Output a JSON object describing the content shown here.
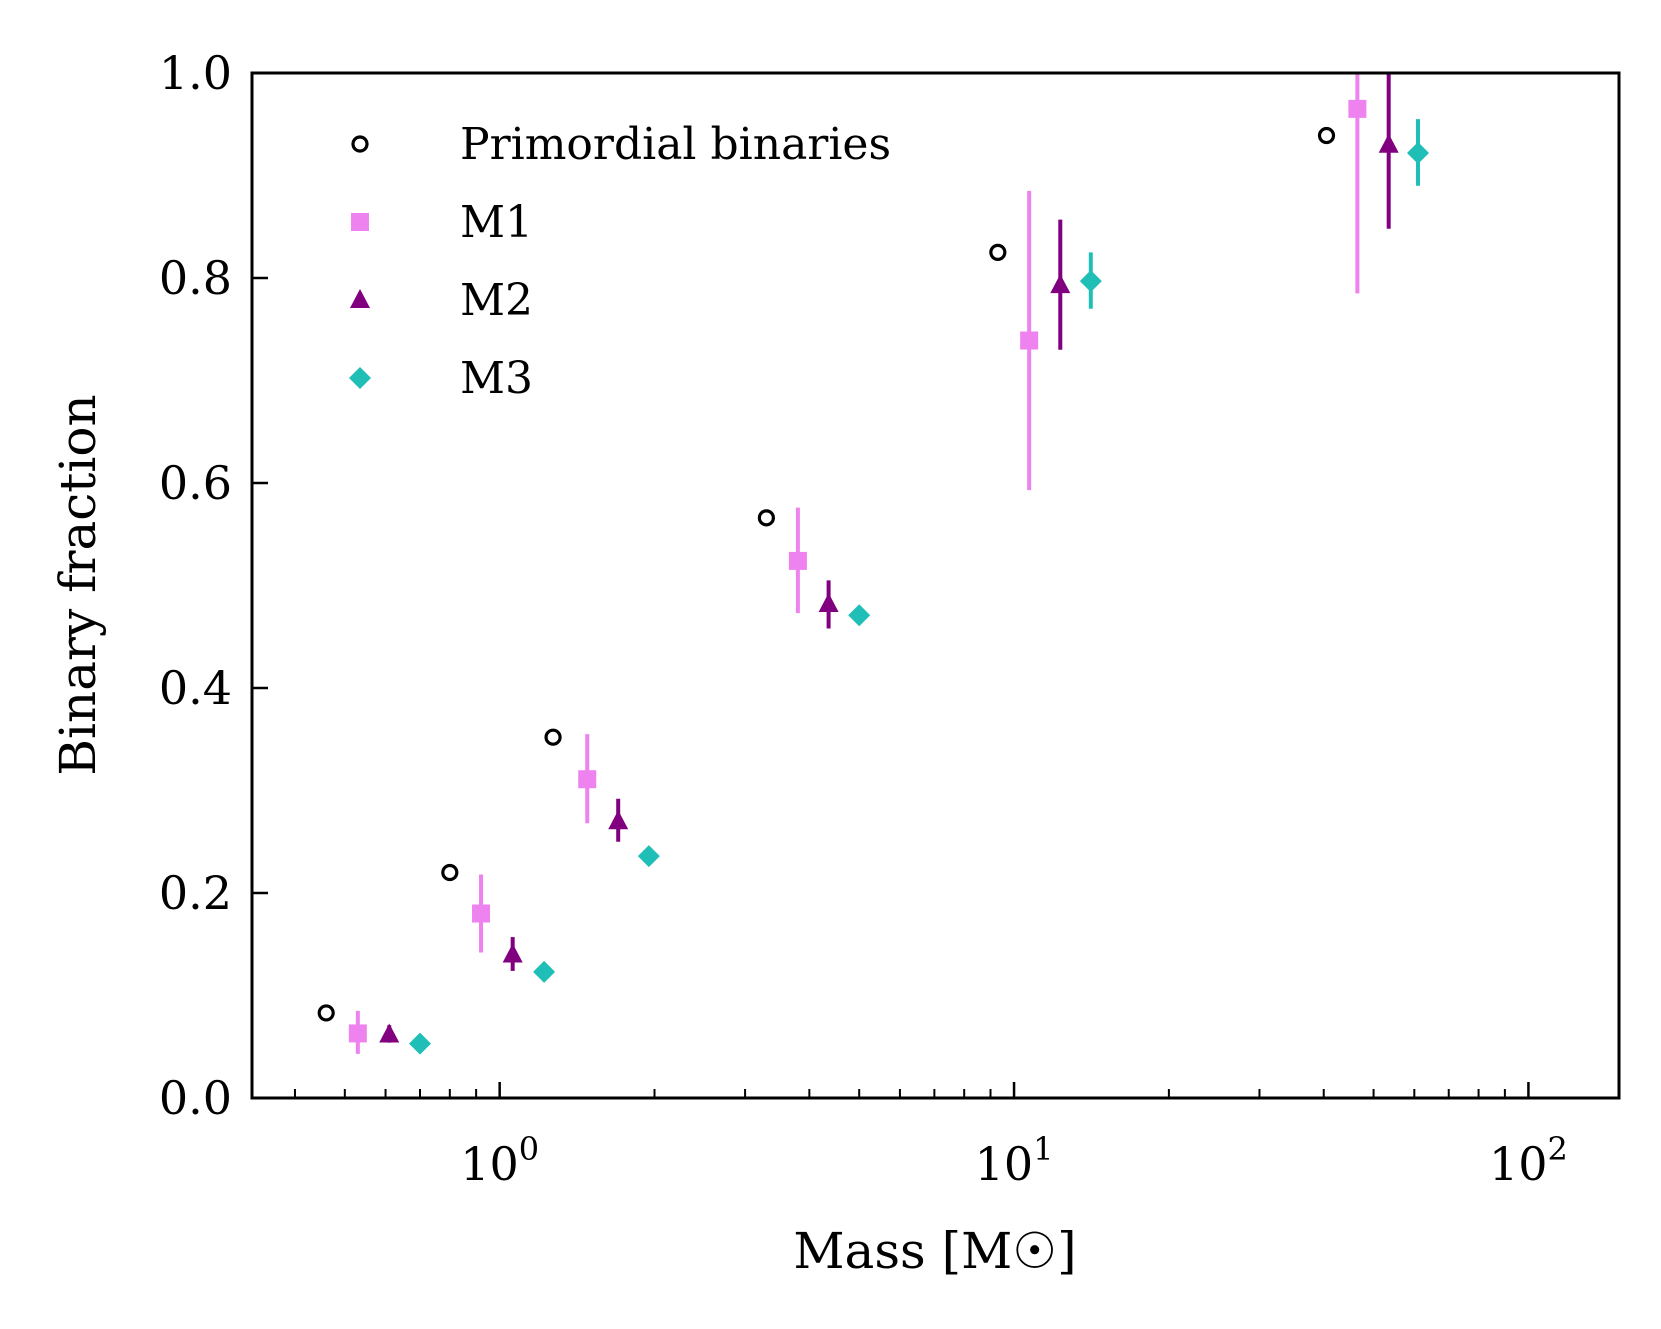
{
  "chart_data": {
    "type": "scatter",
    "title": "",
    "xlabel": "Mass [M☉]",
    "ylabel": "Binary fraction",
    "xscale": "log",
    "xlim": [
      0.33,
      150
    ],
    "ylim": [
      0.0,
      1.0
    ],
    "x_ticks": [
      {
        "value": 1,
        "base": "10",
        "exp": "0"
      },
      {
        "value": 10,
        "base": "10",
        "exp": "1"
      },
      {
        "value": 100,
        "base": "10",
        "exp": "2"
      }
    ],
    "y_ticks": [
      "0.0",
      "0.2",
      "0.4",
      "0.6",
      "0.8",
      "1.0"
    ],
    "grid": false,
    "legend_position": "top-left",
    "series": [
      {
        "name": "Primordial binaries",
        "marker": "open-circle",
        "color": "#000000",
        "points": [
          {
            "x": 0.46,
            "y": 0.083
          },
          {
            "x": 0.8,
            "y": 0.22
          },
          {
            "x": 1.27,
            "y": 0.352
          },
          {
            "x": 3.3,
            "y": 0.566
          },
          {
            "x": 9.3,
            "y": 0.825
          },
          {
            "x": 40.5,
            "y": 0.939
          }
        ]
      },
      {
        "name": "M1",
        "marker": "square",
        "color": "#ee82ee",
        "points": [
          {
            "x": 0.53,
            "y": 0.063,
            "ylow": 0.043,
            "yhigh": 0.085
          },
          {
            "x": 0.92,
            "y": 0.18,
            "ylow": 0.142,
            "yhigh": 0.218
          },
          {
            "x": 1.48,
            "y": 0.311,
            "ylow": 0.268,
            "yhigh": 0.355
          },
          {
            "x": 3.8,
            "y": 0.524,
            "ylow": 0.473,
            "yhigh": 0.576
          },
          {
            "x": 10.7,
            "y": 0.739,
            "ylow": 0.593,
            "yhigh": 0.885
          },
          {
            "x": 46.5,
            "y": 0.965,
            "ylow": 0.785,
            "yhigh": 1.0
          }
        ]
      },
      {
        "name": "M2",
        "marker": "triangle-up",
        "color": "#800080",
        "points": [
          {
            "x": 0.61,
            "y": 0.062,
            "ylow": 0.054,
            "yhigh": 0.071
          },
          {
            "x": 1.06,
            "y": 0.14,
            "ylow": 0.124,
            "yhigh": 0.157
          },
          {
            "x": 1.7,
            "y": 0.27,
            "ylow": 0.25,
            "yhigh": 0.292
          },
          {
            "x": 4.36,
            "y": 0.482,
            "ylow": 0.458,
            "yhigh": 0.505
          },
          {
            "x": 12.3,
            "y": 0.793,
            "ylow": 0.73,
            "yhigh": 0.857
          },
          {
            "x": 53.5,
            "y": 0.93,
            "ylow": 0.848,
            "yhigh": 1.0
          }
        ]
      },
      {
        "name": "M3",
        "marker": "diamond",
        "color": "#1fbfb8",
        "points": [
          {
            "x": 0.7,
            "y": 0.053
          },
          {
            "x": 1.22,
            "y": 0.123
          },
          {
            "x": 1.95,
            "y": 0.236
          },
          {
            "x": 5.0,
            "y": 0.471
          },
          {
            "x": 14.1,
            "y": 0.797,
            "ylow": 0.77,
            "yhigh": 0.825
          },
          {
            "x": 61.0,
            "y": 0.922,
            "ylow": 0.89,
            "yhigh": 0.955
          }
        ]
      }
    ]
  }
}
